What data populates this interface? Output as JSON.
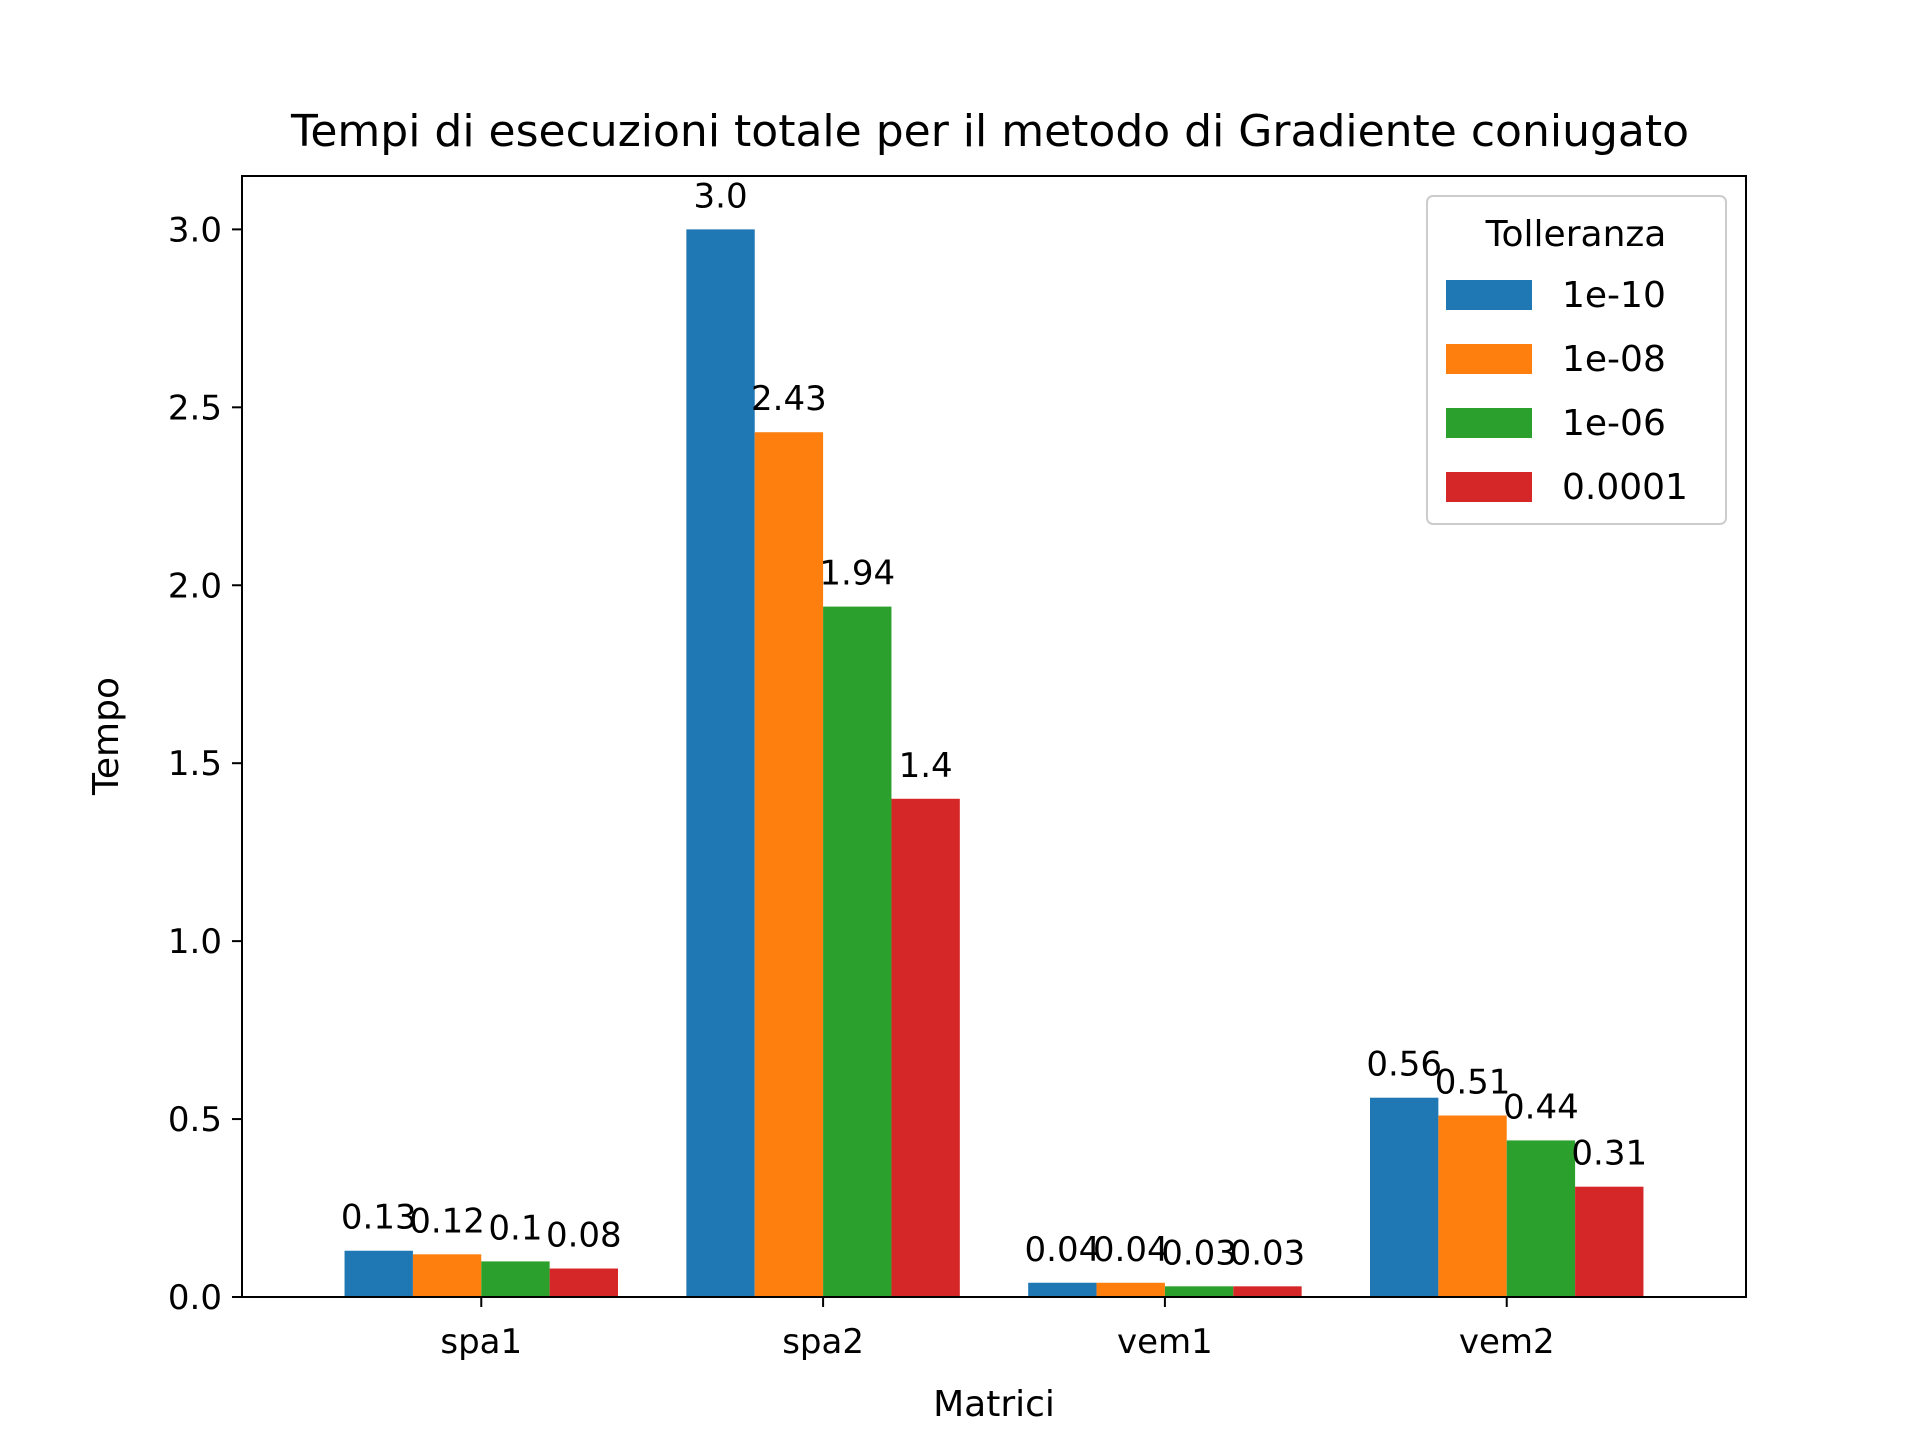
{
  "chart_data": {
    "type": "bar",
    "title": "Tempi di esecuzioni totale per il metodo di Gradiente coniugato",
    "xlabel": "Matrici",
    "ylabel": "Tempo",
    "categories": [
      "spa1",
      "spa2",
      "vem1",
      "vem2"
    ],
    "ylim": [
      0,
      3.15
    ],
    "yticks": [
      {
        "value": 0.0,
        "label": "0.0"
      },
      {
        "value": 0.5,
        "label": "0.5"
      },
      {
        "value": 1.0,
        "label": "1.0"
      },
      {
        "value": 1.5,
        "label": "1.5"
      },
      {
        "value": 2.0,
        "label": "2.0"
      },
      {
        "value": 2.5,
        "label": "2.5"
      },
      {
        "value": 3.0,
        "label": "3.0"
      }
    ],
    "grid": false,
    "legend": {
      "title": "Tolleranza",
      "placement": "top-right"
    },
    "series": [
      {
        "name": "1e-10",
        "color": "#1f77b4",
        "values": [
          0.13,
          3.0,
          0.04,
          0.56
        ],
        "labels": [
          "0.13",
          "3.0",
          "0.04",
          "0.56"
        ]
      },
      {
        "name": "1e-08",
        "color": "#ff7f0e",
        "values": [
          0.12,
          2.43,
          0.04,
          0.51
        ],
        "labels": [
          "0.12",
          "2.43",
          "0.04",
          "0.51"
        ]
      },
      {
        "name": "1e-06",
        "color": "#2ca02c",
        "values": [
          0.1,
          1.94,
          0.03,
          0.44
        ],
        "labels": [
          "0.1",
          "1.94",
          "0.03",
          "0.44"
        ]
      },
      {
        "name": "0.0001",
        "color": "#d62728",
        "values": [
          0.08,
          1.4,
          0.03,
          0.31
        ],
        "labels": [
          "0.08",
          "1.4",
          "0.03",
          "0.31"
        ]
      }
    ]
  }
}
